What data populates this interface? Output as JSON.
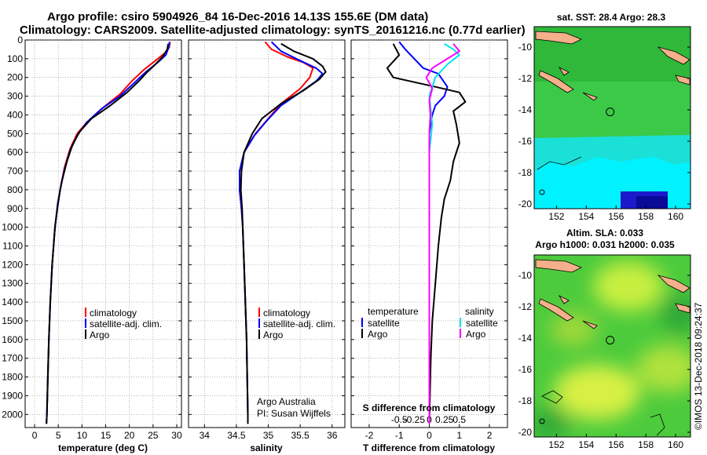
{
  "title": {
    "line1": "Argo profile: csiro 5904926_84 16-Dec-2016 14.13S 155.6E (DM data)",
    "line2": "Climatology: CARS2009. Satellite-adjusted climatology: synTS_20161216.nc (0.77d earlier)"
  },
  "colors": {
    "climatology": "#ff0000",
    "satellite": "#0000ff",
    "argo": "#000000",
    "sat_salinity": "#00e5ee",
    "argo_salinity": "#ff00ff"
  },
  "credits": {
    "line1": "Argo Australia",
    "line2": "PI: Susan Wijffels",
    "imos": "©IMOS 13-Dec-2018 09:24:37"
  },
  "chart_data": [
    {
      "id": "temperature",
      "type": "line",
      "xlabel": "temperature (deg C)",
      "ylabel": "",
      "xlim": [
        -2,
        31
      ],
      "ylim": [
        2070,
        0
      ],
      "xticks": [
        0,
        5,
        10,
        15,
        20,
        25,
        30
      ],
      "yticks": [
        0,
        100,
        200,
        300,
        400,
        500,
        600,
        700,
        800,
        900,
        1000,
        1100,
        1200,
        1300,
        1400,
        1500,
        1600,
        1700,
        1800,
        1900,
        2000
      ],
      "ytick_labels": [
        "0",
        "100",
        "200",
        "300",
        "400",
        "500",
        "600",
        "700",
        "800",
        "900",
        "1000",
        "1100",
        "1200",
        "1300",
        "1400",
        "1500",
        "1600",
        "1700",
        "1800",
        "1900",
        "2000"
      ],
      "legend": [
        "climatology",
        "satellite-adj. clim.",
        "Argo"
      ],
      "series": [
        {
          "name": "climatology",
          "color": "#ff0000",
          "points": [
            [
              28.6,
              10
            ],
            [
              28.4,
              40
            ],
            [
              27.5,
              70
            ],
            [
              25.5,
              110
            ],
            [
              23.0,
              160
            ],
            [
              20.5,
              220
            ],
            [
              18.0,
              290
            ],
            [
              14.5,
              360
            ],
            [
              11.0,
              440
            ],
            [
              9.0,
              500
            ],
            [
              7.5,
              580
            ],
            [
              6.3,
              680
            ],
            [
              5.4,
              800
            ],
            [
              4.8,
              900
            ],
            [
              4.3,
              1000
            ],
            [
              3.7,
              1200
            ],
            [
              3.3,
              1400
            ],
            [
              3.0,
              1600
            ],
            [
              2.8,
              1800
            ],
            [
              2.6,
              2000
            ],
            [
              2.5,
              2050
            ]
          ]
        },
        {
          "name": "satellite-adj. clim.",
          "color": "#0000ff",
          "points": [
            [
              28.5,
              10
            ],
            [
              28.3,
              40
            ],
            [
              27.7,
              80
            ],
            [
              26.0,
              120
            ],
            [
              23.5,
              170
            ],
            [
              21.0,
              230
            ],
            [
              18.0,
              300
            ],
            [
              14.0,
              370
            ],
            [
              11.0,
              440
            ],
            [
              9.0,
              510
            ],
            [
              7.5,
              590
            ],
            [
              6.3,
              690
            ],
            [
              5.4,
              800
            ],
            [
              4.8,
              900
            ],
            [
              4.3,
              1000
            ],
            [
              3.7,
              1200
            ],
            [
              3.3,
              1400
            ],
            [
              3.0,
              1600
            ],
            [
              2.8,
              1800
            ],
            [
              2.6,
              2000
            ],
            [
              2.5,
              2050
            ]
          ]
        },
        {
          "name": "Argo",
          "color": "#000000",
          "points": [
            [
              28.2,
              20
            ],
            [
              28.0,
              50
            ],
            [
              27.0,
              90
            ],
            [
              25.5,
              130
            ],
            [
              23.8,
              170
            ],
            [
              22.0,
              220
            ],
            [
              19.5,
              280
            ],
            [
              16.0,
              350
            ],
            [
              12.0,
              420
            ],
            [
              9.5,
              490
            ],
            [
              8.0,
              560
            ],
            [
              6.8,
              650
            ],
            [
              5.7,
              760
            ],
            [
              4.9,
              870
            ],
            [
              4.3,
              1000
            ],
            [
              3.7,
              1200
            ],
            [
              3.3,
              1400
            ],
            [
              3.0,
              1600
            ],
            [
              2.8,
              1800
            ],
            [
              2.6,
              2000
            ],
            [
              2.5,
              2050
            ]
          ]
        }
      ]
    },
    {
      "id": "salinity",
      "type": "line",
      "xlabel": "salinity",
      "ylabel": "",
      "xlim": [
        33.75,
        36.2
      ],
      "ylim": [
        2070,
        0
      ],
      "xticks": [
        34,
        34.5,
        35,
        35.5,
        36
      ],
      "xtick_labels": [
        "34",
        "34.5",
        "35",
        "35.5",
        "36"
      ],
      "legend": [
        "climatology",
        "satellite-adj. clim.",
        "Argo"
      ],
      "series": [
        {
          "name": "climatology",
          "color": "#ff0000",
          "points": [
            [
              34.95,
              10
            ],
            [
              35.05,
              50
            ],
            [
              35.3,
              90
            ],
            [
              35.55,
              120
            ],
            [
              35.7,
              150
            ],
            [
              35.65,
              200
            ],
            [
              35.5,
              260
            ],
            [
              35.2,
              340
            ],
            [
              35.0,
              420
            ],
            [
              34.8,
              500
            ],
            [
              34.62,
              600
            ],
            [
              34.55,
              700
            ],
            [
              34.55,
              800
            ],
            [
              34.58,
              900
            ],
            [
              34.6,
              1000
            ],
            [
              34.62,
              1200
            ],
            [
              34.64,
              1400
            ],
            [
              34.66,
              1600
            ],
            [
              34.67,
              1800
            ],
            [
              34.68,
              2000
            ],
            [
              34.68,
              2050
            ]
          ]
        },
        {
          "name": "satellite-adj. clim.",
          "color": "#0000ff",
          "points": [
            [
              35.05,
              10
            ],
            [
              35.2,
              60
            ],
            [
              35.5,
              110
            ],
            [
              35.75,
              150
            ],
            [
              35.85,
              180
            ],
            [
              35.75,
              220
            ],
            [
              35.5,
              280
            ],
            [
              35.2,
              350
            ],
            [
              34.98,
              430
            ],
            [
              34.78,
              510
            ],
            [
              34.62,
              600
            ],
            [
              34.55,
              700
            ],
            [
              34.55,
              800
            ],
            [
              34.58,
              900
            ],
            [
              34.6,
              1000
            ],
            [
              34.62,
              1200
            ],
            [
              34.64,
              1400
            ],
            [
              34.66,
              1600
            ],
            [
              34.67,
              1800
            ],
            [
              34.68,
              2000
            ],
            [
              34.68,
              2050
            ]
          ]
        },
        {
          "name": "Argo",
          "color": "#000000",
          "points": [
            [
              35.2,
              20
            ],
            [
              35.4,
              60
            ],
            [
              35.7,
              100
            ],
            [
              35.85,
              140
            ],
            [
              35.9,
              170
            ],
            [
              35.8,
              210
            ],
            [
              35.55,
              270
            ],
            [
              35.2,
              340
            ],
            [
              34.9,
              420
            ],
            [
              34.75,
              500
            ],
            [
              34.62,
              600
            ],
            [
              34.58,
              700
            ],
            [
              34.57,
              800
            ],
            [
              34.59,
              900
            ],
            [
              34.6,
              1000
            ],
            [
              34.62,
              1200
            ],
            [
              34.64,
              1400
            ],
            [
              34.66,
              1600
            ],
            [
              34.67,
              1800
            ],
            [
              34.68,
              2000
            ],
            [
              34.68,
              2050
            ]
          ]
        }
      ]
    },
    {
      "id": "difference",
      "type": "line",
      "xlabel": "T difference from climatology",
      "xlabel2": "S difference from climatology",
      "xlim": [
        -2.6,
        2.6
      ],
      "ylim": [
        2070,
        0
      ],
      "xticks": [
        -2,
        -1,
        0,
        1,
        2
      ],
      "xtick_labels": [
        "-2",
        "-1",
        "0",
        "1",
        "2"
      ],
      "s_ticks": [
        -0.5,
        -0.25,
        0,
        0.25,
        0.5
      ],
      "s_tick_labels": [
        "-0.5",
        "-0.25",
        "0",
        "0.25",
        "0.5"
      ],
      "s_scale": 0.5,
      "legend_left_title": "temperature",
      "legend_right_title": "salinity",
      "legend_left": [
        "satellite",
        "Argo"
      ],
      "legend_right": [
        "satellite",
        "Argo"
      ],
      "series": [
        {
          "name": "T satellite",
          "color": "#0000ff",
          "points": [
            [
              -1.0,
              10
            ],
            [
              -0.8,
              50
            ],
            [
              -0.5,
              100
            ],
            [
              -0.2,
              150
            ],
            [
              0.3,
              180
            ],
            [
              0.6,
              250
            ],
            [
              0.5,
              300
            ],
            [
              0.2,
              350
            ],
            [
              0.1,
              400
            ],
            [
              0.0,
              500
            ],
            [
              0.0,
              700
            ],
            [
              0.0,
              1000
            ],
            [
              0.0,
              1500
            ],
            [
              0.0,
              2050
            ]
          ]
        },
        {
          "name": "T Argo",
          "color": "#000000",
          "points": [
            [
              -1.2,
              20
            ],
            [
              -1.0,
              80
            ],
            [
              -1.4,
              150
            ],
            [
              -1.2,
              200
            ],
            [
              0.2,
              250
            ],
            [
              1.0,
              280
            ],
            [
              1.2,
              330
            ],
            [
              0.8,
              380
            ],
            [
              0.9,
              450
            ],
            [
              1.0,
              550
            ],
            [
              0.8,
              650
            ],
            [
              0.7,
              750
            ],
            [
              0.5,
              850
            ],
            [
              0.4,
              950
            ],
            [
              0.3,
              1100
            ],
            [
              0.2,
              1300
            ],
            [
              0.1,
              1500
            ],
            [
              0.05,
              1700
            ],
            [
              0.0,
              2050
            ]
          ]
        },
        {
          "name": "S satellite",
          "color": "#00e5ee",
          "points": [
            [
              0.25,
              20
            ],
            [
              0.4,
              50
            ],
            [
              0.5,
              80
            ],
            [
              0.3,
              130
            ],
            [
              0.1,
              200
            ],
            [
              0.0,
              300
            ],
            [
              0.05,
              450
            ],
            [
              0.0,
              600
            ],
            [
              0.0,
              1000
            ],
            [
              0.0,
              1500
            ],
            [
              0.0,
              2050
            ]
          ]
        },
        {
          "name": "S Argo",
          "color": "#ff00ff",
          "points": [
            [
              0.4,
              20
            ],
            [
              0.5,
              60
            ],
            [
              0.3,
              100
            ],
            [
              0.05,
              150
            ],
            [
              -0.05,
              200
            ],
            [
              0.05,
              260
            ],
            [
              0.0,
              320
            ],
            [
              0.02,
              400
            ],
            [
              0.0,
              500
            ],
            [
              0.0,
              700
            ],
            [
              0.0,
              1000
            ],
            [
              0.0,
              1500
            ],
            [
              0.0,
              2050
            ]
          ]
        }
      ]
    }
  ],
  "maps": {
    "top": {
      "title": "sat. SST: 28.4 Argo: 28.3",
      "xlim": [
        150.5,
        161
      ],
      "ylim": [
        -20.3,
        -8.7
      ],
      "xticks": [
        152,
        154,
        156,
        158,
        160
      ],
      "yticks": [
        -10,
        -12,
        -14,
        -16,
        -18,
        -20
      ],
      "xtick_labels": [
        "152",
        "154",
        "156",
        "158",
        "160"
      ],
      "ytick_labels": [
        "-10",
        "-12",
        "-14",
        "-16",
        "-18",
        "-20"
      ],
      "float_lon": 155.6,
      "float_lat": -14.13
    },
    "bottom": {
      "title1": "Altim. SLA: 0.033",
      "title2": "Argo h1000: 0.031 h2000: 0.035",
      "xlim": [
        150.5,
        161
      ],
      "ylim": [
        -20.3,
        -8.7
      ],
      "xticks": [
        152,
        154,
        156,
        158,
        160
      ],
      "yticks": [
        -10,
        -12,
        -14,
        -16,
        -18,
        -20
      ],
      "xtick_labels": [
        "152",
        "154",
        "156",
        "158",
        "160"
      ],
      "ytick_labels": [
        "-10",
        "-12",
        "-14",
        "-16",
        "-18",
        "-20"
      ],
      "float_lon": 155.6,
      "float_lat": -14.13
    }
  }
}
